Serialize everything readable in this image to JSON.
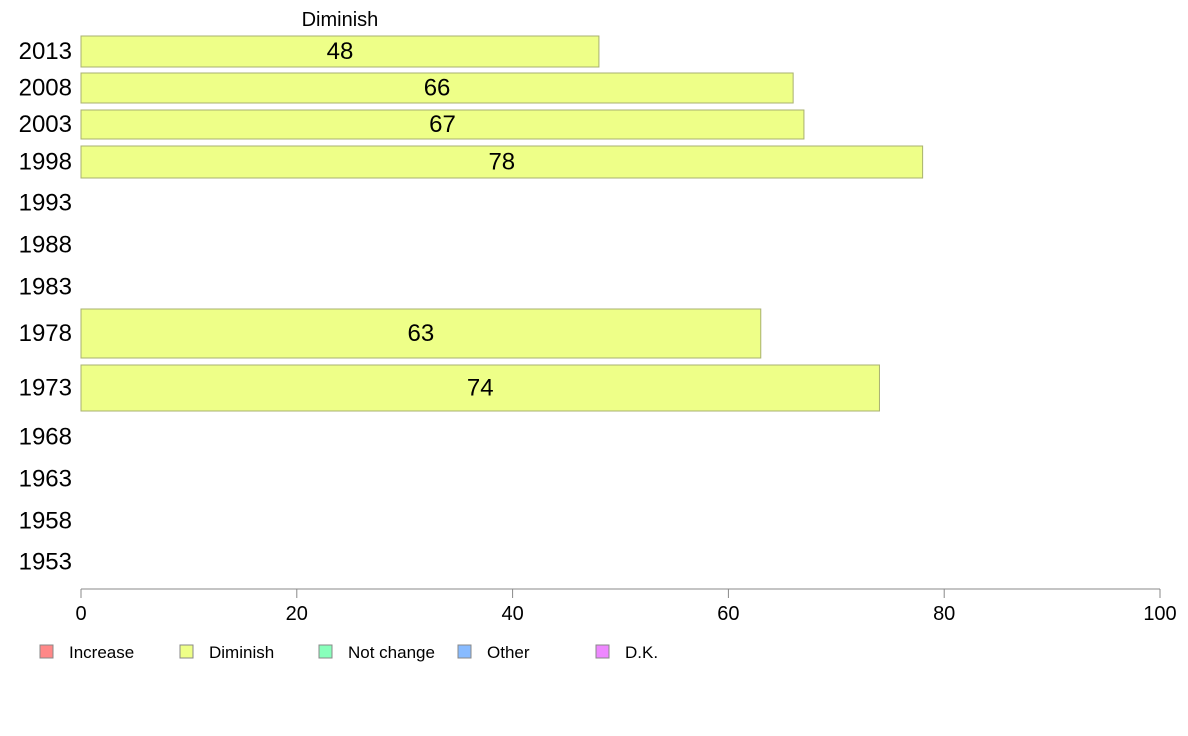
{
  "chart_data": {
    "type": "bar",
    "orientation": "horizontal",
    "series_title": "Diminish",
    "categories": [
      "2013",
      "2008",
      "2003",
      "1998",
      "1993",
      "1988",
      "1983",
      "1978",
      "1973",
      "1968",
      "1963",
      "1958",
      "1953"
    ],
    "series": [
      {
        "name": "Diminish",
        "values": [
          48,
          66,
          67,
          78,
          null,
          null,
          null,
          63,
          74,
          null,
          null,
          null,
          null
        ],
        "color": "#eeff88"
      }
    ],
    "xlim": [
      0,
      100
    ],
    "xticks": [
      0,
      20,
      40,
      60,
      80,
      100
    ],
    "grid": false,
    "legend_position": "bottom-left",
    "legend": [
      {
        "label": "Increase",
        "color": "#ff8888"
      },
      {
        "label": "Diminish",
        "color": "#eeff88"
      },
      {
        "label": "Not change",
        "color": "#88ffbb"
      },
      {
        "label": "Other",
        "color": "#88bbff"
      },
      {
        "label": "D.K.",
        "color": "#ee88ff"
      }
    ]
  }
}
